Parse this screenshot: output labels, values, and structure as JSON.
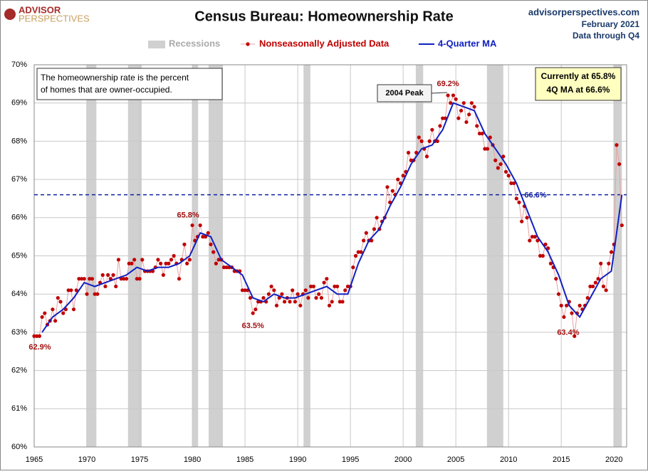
{
  "chart_data": {
    "type": "line",
    "title": "Census Bureau: Homeownership Rate",
    "brand": [
      "ADVISOR",
      "PERSPECTIVES"
    ],
    "source": [
      "advisorperspectives.com",
      "February 2021",
      "Data through Q4"
    ],
    "note": [
      "The homeownership rate is the percent",
      "of homes that are owner-occupied."
    ],
    "current_box": [
      "Currently at 65.8%",
      "4Q MA at 66.6%"
    ],
    "peak_label": "2004 Peak",
    "recession_name": "Recessions",
    "recession_color": "#d0d0d0",
    "recessions": [
      [
        1969.95,
        1970.9
      ],
      [
        1973.9,
        1975.2
      ],
      [
        1980.0,
        1980.55
      ],
      [
        1981.55,
        1982.9
      ],
      [
        1990.55,
        1991.2
      ],
      [
        2001.2,
        2001.9
      ],
      [
        2007.95,
        2009.5
      ],
      [
        2019.95,
        2020.75
      ]
    ],
    "reference_line": {
      "value": 66.6,
      "label": "66.6%",
      "color": "#1020a0"
    },
    "annotations": [
      "62.9%",
      "65.8%",
      "63.5%",
      "69.2%",
      "63.4%"
    ],
    "xlim": [
      1965,
      2021.2
    ],
    "xticks": [
      1965,
      1970,
      1975,
      1980,
      1985,
      1990,
      1995,
      2000,
      2005,
      2010,
      2015,
      2020
    ],
    "ylim": [
      60,
      70
    ],
    "yticks": [
      {
        "value": 60,
        "label": "60%"
      },
      {
        "value": 61,
        "label": "61%"
      },
      {
        "value": 62,
        "label": "62%"
      },
      {
        "value": 63,
        "label": "63%"
      },
      {
        "value": 64,
        "label": "64%"
      },
      {
        "value": 65,
        "label": "65%"
      },
      {
        "value": 66,
        "label": "66%"
      },
      {
        "value": 67,
        "label": "67%"
      },
      {
        "value": 68,
        "label": "68%"
      },
      {
        "value": 69,
        "label": "69%"
      },
      {
        "value": 70,
        "label": "70%"
      }
    ],
    "grid": true,
    "series": [
      {
        "name": "Nonseasonally Adjusted Data",
        "color": "#c00000",
        "line_color": "#eaa0a0",
        "x": [
          1965,
          1965.25,
          1965.5,
          1965.75,
          1966,
          1966.25,
          1966.5,
          1966.75,
          1967,
          1967.25,
          1967.5,
          1967.75,
          1968,
          1968.25,
          1968.5,
          1968.75,
          1969,
          1969.25,
          1969.5,
          1969.75,
          1970,
          1970.25,
          1970.5,
          1970.75,
          1971,
          1971.25,
          1971.5,
          1971.75,
          1972,
          1972.25,
          1972.5,
          1972.75,
          1973,
          1973.25,
          1973.5,
          1973.75,
          1974,
          1974.25,
          1974.5,
          1974.75,
          1975,
          1975.25,
          1975.5,
          1975.75,
          1976,
          1976.25,
          1976.5,
          1976.75,
          1977,
          1977.25,
          1977.5,
          1977.75,
          1978,
          1978.25,
          1978.5,
          1978.75,
          1979,
          1979.25,
          1979.5,
          1979.75,
          1980,
          1980.25,
          1980.5,
          1980.75,
          1981,
          1981.25,
          1981.5,
          1981.75,
          1982,
          1982.25,
          1982.5,
          1982.75,
          1983,
          1983.25,
          1983.5,
          1983.75,
          1984,
          1984.25,
          1984.5,
          1984.75,
          1985,
          1985.25,
          1985.5,
          1985.75,
          1986,
          1986.25,
          1986.5,
          1986.75,
          1987,
          1987.25,
          1987.5,
          1987.75,
          1988,
          1988.25,
          1988.5,
          1988.75,
          1989,
          1989.25,
          1989.5,
          1989.75,
          1990,
          1990.25,
          1990.5,
          1990.75,
          1991,
          1991.25,
          1991.5,
          1991.75,
          1992,
          1992.25,
          1992.5,
          1992.75,
          1993,
          1993.25,
          1993.5,
          1993.75,
          1994,
          1994.25,
          1994.5,
          1994.75,
          1995,
          1995.25,
          1995.5,
          1995.75,
          1996,
          1996.25,
          1996.5,
          1996.75,
          1997,
          1997.25,
          1997.5,
          1997.75,
          1998,
          1998.25,
          1998.5,
          1998.75,
          1999,
          1999.25,
          1999.5,
          1999.75,
          2000,
          2000.25,
          2000.5,
          2000.75,
          2001,
          2001.25,
          2001.5,
          2001.75,
          2002,
          2002.25,
          2002.5,
          2002.75,
          2003,
          2003.25,
          2003.5,
          2003.75,
          2004,
          2004.25,
          2004.5,
          2004.75,
          2005,
          2005.25,
          2005.5,
          2005.75,
          2006,
          2006.25,
          2006.5,
          2006.75,
          2007,
          2007.25,
          2007.5,
          2007.75,
          2008,
          2008.25,
          2008.5,
          2008.75,
          2009,
          2009.25,
          2009.5,
          2009.75,
          2010,
          2010.25,
          2010.5,
          2010.75,
          2011,
          2011.25,
          2011.5,
          2011.75,
          2012,
          2012.25,
          2012.5,
          2012.75,
          2013,
          2013.25,
          2013.5,
          2013.75,
          2014,
          2014.25,
          2014.5,
          2014.75,
          2015,
          2015.25,
          2015.5,
          2015.75,
          2016,
          2016.25,
          2016.5,
          2016.75,
          2017,
          2017.25,
          2017.5,
          2017.75,
          2018,
          2018.25,
          2018.5,
          2018.75,
          2019,
          2019.25,
          2019.5,
          2019.75,
          2020,
          2020.25,
          2020.5,
          2020.75
        ],
        "values": [
          62.9,
          62.9,
          62.9,
          63.4,
          63.5,
          63.2,
          63.3,
          63.6,
          63.3,
          63.9,
          63.8,
          63.5,
          63.6,
          64.1,
          64.1,
          63.6,
          64.1,
          64.4,
          64.4,
          64.4,
          64.0,
          64.4,
          64.4,
          64.0,
          64.0,
          64.3,
          64.5,
          64.2,
          64.5,
          64.4,
          64.5,
          64.2,
          64.9,
          64.4,
          64.4,
          64.4,
          64.8,
          64.8,
          64.9,
          64.4,
          64.4,
          64.9,
          64.6,
          64.6,
          64.6,
          64.6,
          64.7,
          64.9,
          64.8,
          64.5,
          64.8,
          64.8,
          64.9,
          65.0,
          64.8,
          64.4,
          64.9,
          65.3,
          64.8,
          64.9,
          65.8,
          65.4,
          65.5,
          65.8,
          65.5,
          65.5,
          65.6,
          65.3,
          65.1,
          64.8,
          64.9,
          64.9,
          64.7,
          64.7,
          64.7,
          64.7,
          64.6,
          64.6,
          64.6,
          64.1,
          64.1,
          64.1,
          63.9,
          63.5,
          63.6,
          63.8,
          63.8,
          63.9,
          63.8,
          64.0,
          64.2,
          64.1,
          63.7,
          63.9,
          64.0,
          63.8,
          63.9,
          63.8,
          64.1,
          63.8,
          64.0,
          63.7,
          64.0,
          64.1,
          63.9,
          64.2,
          64.2,
          63.9,
          64.0,
          63.9,
          64.3,
          64.4,
          63.7,
          63.8,
          64.2,
          64.2,
          63.8,
          63.8,
          64.1,
          64.2,
          64.2,
          64.7,
          65.0,
          65.1,
          65.1,
          65.4,
          65.6,
          65.4,
          65.4,
          65.7,
          66.0,
          65.7,
          65.9,
          66.0,
          66.8,
          66.4,
          66.7,
          66.6,
          67.0,
          66.9,
          67.1,
          67.2,
          67.7,
          67.5,
          67.5,
          67.7,
          68.1,
          68.0,
          67.8,
          67.6,
          68.0,
          68.3,
          68.0,
          68.0,
          68.4,
          68.6,
          68.6,
          69.2,
          69.0,
          69.2,
          69.1,
          68.6,
          68.8,
          69.0,
          68.5,
          68.7,
          69.0,
          68.9,
          68.4,
          68.2,
          68.2,
          67.8,
          67.8,
          68.1,
          67.9,
          67.5,
          67.3,
          67.4,
          67.6,
          67.2,
          67.1,
          66.9,
          66.9,
          66.5,
          66.4,
          65.9,
          66.3,
          66.0,
          65.4,
          65.5,
          65.5,
          65.4,
          65.0,
          65.0,
          65.3,
          65.2,
          64.8,
          64.7,
          64.4,
          64.0,
          63.7,
          63.4,
          63.7,
          63.8,
          63.5,
          62.9,
          63.5,
          63.7,
          63.6,
          63.7,
          63.9,
          64.2,
          64.2,
          64.3,
          64.4,
          64.8,
          64.2,
          64.1,
          64.8,
          65.1,
          65.3,
          67.9,
          67.4,
          65.8
        ]
      },
      {
        "name": "4-Quarter MA",
        "color": "#1020c0",
        "x": [
          1965.75,
          1966.75,
          1967.75,
          1968.75,
          1969.75,
          1970.75,
          1971.75,
          1972.75,
          1973.75,
          1974.75,
          1975.75,
          1976.75,
          1977.75,
          1978.75,
          1979.75,
          1980.75,
          1981.75,
          1982.75,
          1983.75,
          1984.75,
          1985.75,
          1986.75,
          1987.75,
          1988.75,
          1989.75,
          1990.75,
          1991.75,
          1992.75,
          1993.75,
          1994.75,
          1995.75,
          1996.75,
          1997.75,
          1998.75,
          1999.75,
          2000.75,
          2001.75,
          2002.75,
          2003.75,
          2004.75,
          2005.75,
          2006.75,
          2007.75,
          2008.75,
          2009.75,
          2010.75,
          2011.75,
          2012.75,
          2013.75,
          2014.75,
          2015.75,
          2016.75,
          2017.75,
          2018.75,
          2019.75,
          2020.75
        ],
        "values": [
          63.0,
          63.4,
          63.6,
          63.9,
          64.3,
          64.2,
          64.3,
          64.4,
          64.5,
          64.7,
          64.6,
          64.7,
          64.7,
          64.8,
          65.0,
          65.6,
          65.5,
          64.9,
          64.7,
          64.5,
          63.9,
          63.8,
          64.0,
          63.9,
          63.9,
          64.0,
          64.1,
          64.2,
          64.0,
          64.0,
          64.8,
          65.4,
          65.7,
          66.3,
          66.8,
          67.4,
          67.8,
          67.9,
          68.3,
          69.0,
          68.9,
          68.8,
          68.2,
          67.8,
          67.4,
          66.9,
          66.2,
          65.5,
          65.1,
          64.5,
          63.7,
          63.4,
          63.9,
          64.4,
          64.6,
          66.6
        ]
      }
    ]
  }
}
